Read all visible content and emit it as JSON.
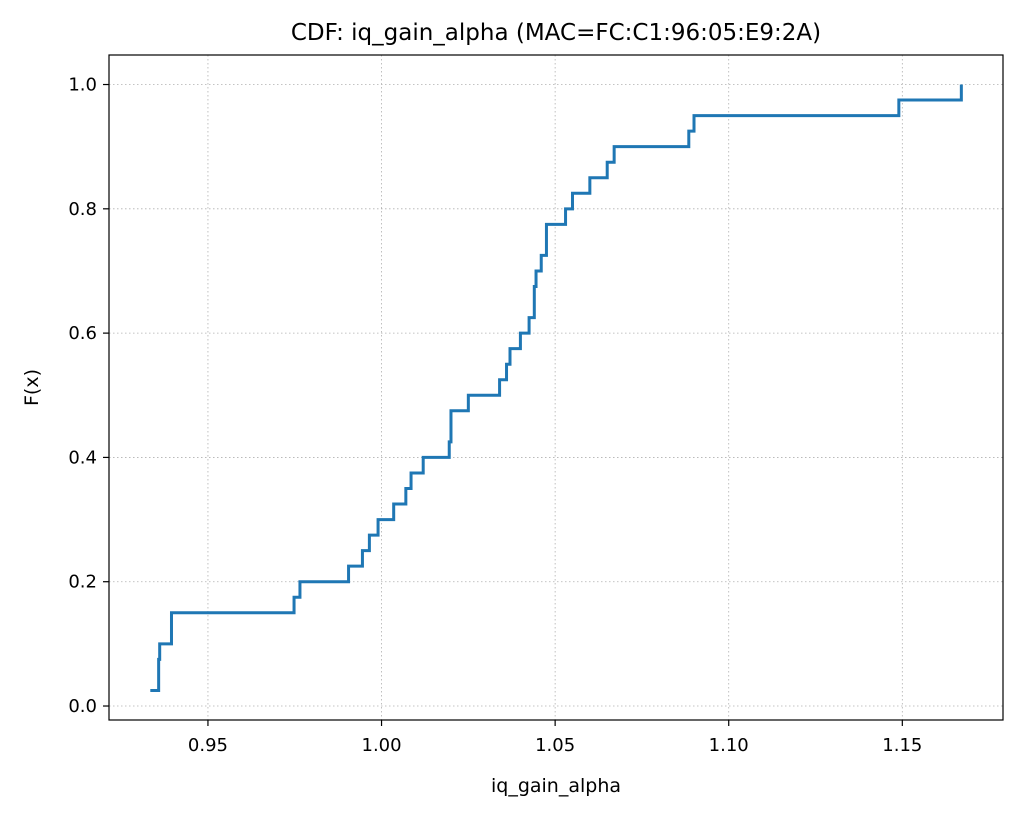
{
  "chart_data": {
    "type": "line",
    "step": "post",
    "title": "CDF: iq_gain_alpha (MAC=FC:C1:96:05:E9:2A)",
    "xlabel": "iq_gain_alpha",
    "ylabel": "F(x)",
    "xlim": [
      0.9215,
      1.179
    ],
    "ylim": [
      -0.0225,
      1.0475
    ],
    "xticks": [
      0.95,
      1.0,
      1.05,
      1.1,
      1.15
    ],
    "xtick_labels": [
      "0.95",
      "1.00",
      "1.05",
      "1.10",
      "1.15"
    ],
    "yticks": [
      0.0,
      0.2,
      0.4,
      0.6,
      0.8,
      1.0
    ],
    "ytick_labels": [
      "0.0",
      "0.2",
      "0.4",
      "0.6",
      "0.8",
      "1.0"
    ],
    "grid": true,
    "series": [
      {
        "color": "#1f77b4",
        "x": [
          0.9334,
          0.9358,
          0.9361,
          0.9395,
          0.9748,
          0.9765,
          0.9905,
          0.9945,
          0.9965,
          0.999,
          1.0035,
          1.007,
          1.0085,
          1.012,
          1.0195,
          1.02,
          1.025,
          1.034,
          1.036,
          1.037,
          1.04,
          1.0425,
          1.044,
          1.0445,
          1.046,
          1.0475,
          1.053,
          1.055,
          1.06,
          1.065,
          1.067,
          1.0885,
          1.09,
          1.149,
          1.167
        ],
        "y": [
          0.025,
          0.075,
          0.1,
          0.15,
          0.175,
          0.2,
          0.225,
          0.25,
          0.275,
          0.3,
          0.325,
          0.35,
          0.375,
          0.4,
          0.425,
          0.475,
          0.5,
          0.525,
          0.55,
          0.575,
          0.6,
          0.625,
          0.675,
          0.7,
          0.725,
          0.775,
          0.8,
          0.825,
          0.85,
          0.875,
          0.9,
          0.925,
          0.95,
          0.975,
          1.0
        ]
      }
    ]
  }
}
